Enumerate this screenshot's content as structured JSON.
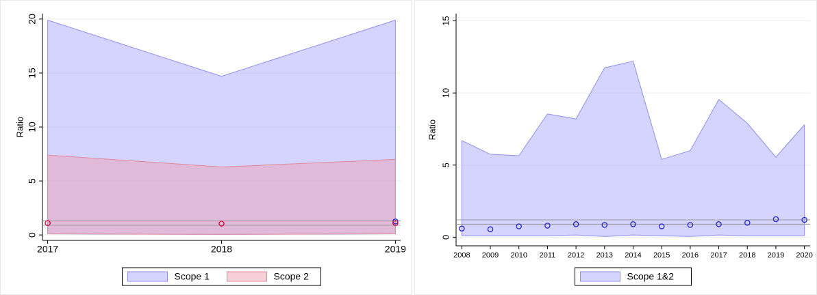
{
  "chart_data": [
    {
      "type": "range_area",
      "ylabel": "Ratio",
      "x": [
        2017,
        2018,
        2019
      ],
      "xlim": [
        2016.97,
        2019.03
      ],
      "xticks": [
        2017,
        2018,
        2019
      ],
      "ylim": [
        -0.5,
        20.5
      ],
      "yticks": [
        0,
        5,
        10,
        15,
        20
      ],
      "grid": true,
      "hlines": [
        0.9,
        1.3
      ],
      "hline_color": "#999999",
      "legend": "bottom",
      "series": [
        {
          "name": "Scope 1",
          "color": "#8f8fef",
          "fill": "#aaaaff",
          "point_color": "#2b2bd0",
          "upper": [
            19.9,
            14.7,
            19.9
          ],
          "lower": [
            0.1,
            0.05,
            0.1
          ],
          "points": [
            null,
            null,
            1.25
          ]
        },
        {
          "name": "Scope 2",
          "color": "#e0889a",
          "fill": "#f0a0b4",
          "point_color": "#d01040",
          "upper": [
            7.4,
            6.3,
            7.0
          ],
          "lower": [
            0.1,
            0.05,
            0.1
          ],
          "points": [
            1.1,
            1.05,
            1.1
          ]
        }
      ]
    },
    {
      "type": "range_area",
      "ylabel": "Ratio",
      "x": [
        2008,
        2009,
        2010,
        2011,
        2012,
        2013,
        2014,
        2015,
        2016,
        2017,
        2018,
        2019,
        2020
      ],
      "xlim": [
        2007.8,
        2020.2
      ],
      "xticks": [
        2008,
        2009,
        2010,
        2011,
        2012,
        2013,
        2014,
        2015,
        2016,
        2017,
        2018,
        2019,
        2020
      ],
      "ylim": [
        -0.6,
        15.5
      ],
      "yticks": [
        0,
        5,
        10,
        15
      ],
      "grid": true,
      "hlines": [
        0.9,
        1.2
      ],
      "hline_color": "#999999",
      "legend": "bottom",
      "series": [
        {
          "name": "Scope 1&2",
          "color": "#8f8fef",
          "fill": "#aaaaff",
          "point_color": "#2b2bd0",
          "upper": [
            6.7,
            5.75,
            5.65,
            8.55,
            8.2,
            11.75,
            12.2,
            5.4,
            6.0,
            9.55,
            7.9,
            5.55,
            7.8
          ],
          "lower": [
            0.1,
            0.1,
            0.1,
            0.1,
            0.15,
            0.05,
            0.15,
            0.1,
            0.05,
            0.15,
            0.1,
            0.1,
            0.1
          ],
          "points": [
            0.6,
            0.55,
            0.75,
            0.8,
            0.9,
            0.85,
            0.9,
            0.75,
            0.85,
            0.9,
            1.0,
            1.25,
            1.2
          ]
        }
      ]
    }
  ]
}
